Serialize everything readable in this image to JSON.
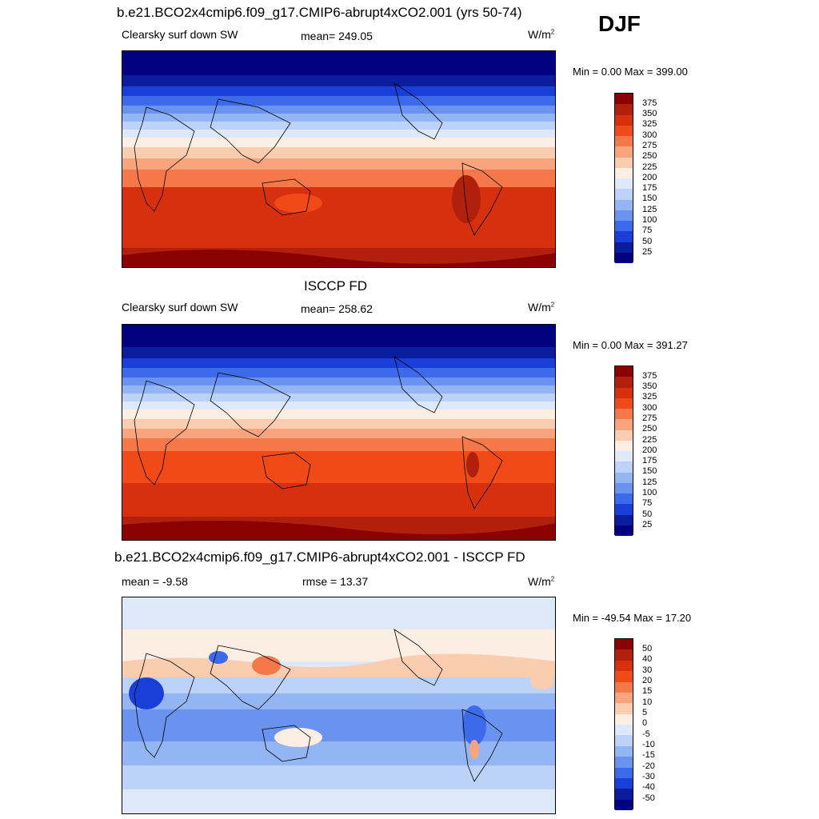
{
  "season": "DJF",
  "panels": [
    {
      "title": "b.e21.BCO2x4cmip6.f09_g17.CMIP6-abrupt4xCO2.001 (yrs 50-74)",
      "left_label": "Clearsky surf down SW",
      "center_label": "mean= 249.05",
      "units": "W/m",
      "units_sup": "2",
      "minmax": "Min =   0.00 Max = 399.00",
      "colorbar_labels": [
        "375",
        "350",
        "325",
        "300",
        "275",
        "250",
        "225",
        "200",
        "175",
        "150",
        "125",
        "100",
        "75",
        "50",
        "25"
      ]
    },
    {
      "title": "ISCCP FD",
      "left_label": "Clearsky surf down SW",
      "center_label": "mean= 258.62",
      "units": "W/m",
      "units_sup": "2",
      "minmax": "Min =   0.00 Max = 391.27",
      "colorbar_labels": [
        "375",
        "350",
        "325",
        "300",
        "275",
        "250",
        "225",
        "200",
        "175",
        "150",
        "125",
        "100",
        "75",
        "50",
        "25"
      ]
    },
    {
      "title": "b.e21.BCO2x4cmip6.f09_g17.CMIP6-abrupt4xCO2.001 - ISCCP FD",
      "left_label": "mean =  -9.58",
      "center_label": "rmse =  13.37",
      "units": "W/m",
      "units_sup": "2",
      "minmax": "Min = -49.54 Max =  17.20",
      "colorbar_labels": [
        "50",
        "40",
        "30",
        "20",
        "15",
        "10",
        "5",
        "0",
        "-5",
        "-10",
        "-15",
        "-20",
        "-30",
        "-40",
        "-50"
      ]
    }
  ],
  "colors": {
    "sw_scale": [
      "#8b0000",
      "#b0200c",
      "#d7300f",
      "#f04a18",
      "#f4784a",
      "#f8a47c",
      "#fbcdb0",
      "#fdeee4",
      "#dde9f9",
      "#bcd3f7",
      "#93b5f3",
      "#6a93ef",
      "#3d6ae9",
      "#1a3fd9",
      "#0a1d9c",
      "#000080"
    ],
    "diff_scale": [
      "#8b0000",
      "#b0200c",
      "#d7300f",
      "#f04a18",
      "#f4784a",
      "#f8a47c",
      "#fbcdb0",
      "#fdeee4",
      "#dde9f9",
      "#bcd3f7",
      "#93b5f3",
      "#6a93ef",
      "#3d6ae9",
      "#1a3fd9",
      "#0a1d9c",
      "#000080"
    ]
  }
}
